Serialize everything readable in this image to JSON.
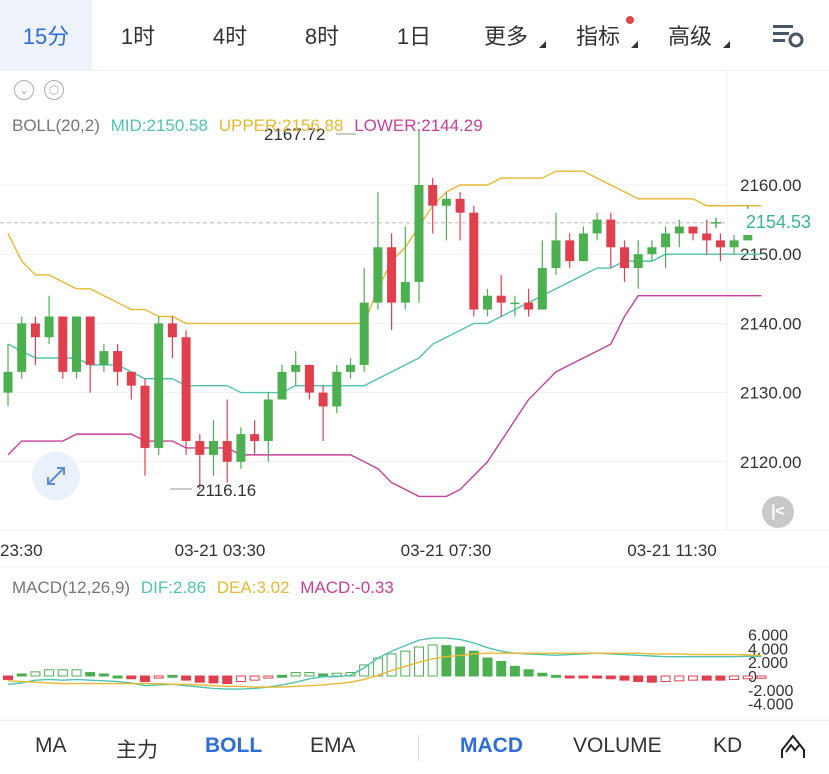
{
  "tabs": [
    {
      "label": "15分",
      "active": true
    },
    {
      "label": "1时"
    },
    {
      "label": "4时"
    },
    {
      "label": "8时"
    },
    {
      "label": "1日"
    },
    {
      "label": "更多",
      "caret": true
    },
    {
      "label": "指标",
      "caret": true,
      "dot": true
    },
    {
      "label": "高级",
      "caret": true
    }
  ],
  "boll": {
    "name": "BOLL(20,2)",
    "mid": "MID:2150.58",
    "upper": "UPPER:2156.88",
    "lower": "LOWER:2144.29"
  },
  "macd": {
    "name": "MACD(12,26,9)",
    "dif": "DIF:2.86",
    "dea": "DEA:3.02",
    "macd": "MACD:-0.33"
  },
  "current_price": "2154.53",
  "bottom": {
    "items": [
      "MA",
      "主力",
      "BOLL",
      "EMA",
      "MACD",
      "VOLUME",
      "KD"
    ],
    "active": [
      "BOLL",
      "MACD"
    ]
  },
  "colors": {
    "up": "#4caf50",
    "down": "#e0404e",
    "accent": "#2d6fd6",
    "mid": "#4fc3b0",
    "upper": "#e8b830",
    "lower": "#c8409a",
    "dif": "#4fc3b0",
    "dea": "#e8b830",
    "macd": "#c8409a"
  },
  "chart_data": [
    {
      "type": "candlestick",
      "title": "",
      "x_tick_labels": [
        "23:30",
        "03-21 03:30",
        "03-21 07:30",
        "03-21 11:30"
      ],
      "y_ticks": [
        2120.0,
        2130.0,
        2140.0,
        2150.0,
        2160.0
      ],
      "ylim": [
        2113,
        2170
      ],
      "max_label": "2167.72",
      "min_label": "2116.16",
      "current": 2154.53,
      "candles": [
        [
          2130,
          2133,
          2128,
          2137
        ],
        [
          2133,
          2140,
          2132,
          2141
        ],
        [
          2140,
          2138,
          2134,
          2141
        ],
        [
          2138,
          2141,
          2137,
          2144
        ],
        [
          2141,
          2133,
          2132,
          2141
        ],
        [
          2133,
          2141,
          2132,
          2141
        ],
        [
          2141,
          2134,
          2130,
          2141
        ],
        [
          2134,
          2136,
          2133,
          2137
        ],
        [
          2136,
          2133,
          2131,
          2137
        ],
        [
          2133,
          2131,
          2129,
          2133
        ],
        [
          2131,
          2122,
          2118,
          2132
        ],
        [
          2122,
          2140,
          2121,
          2141
        ],
        [
          2140,
          2138,
          2135,
          2141
        ],
        [
          2138,
          2123,
          2121,
          2139
        ],
        [
          2123,
          2121,
          2116,
          2124
        ],
        [
          2121,
          2123,
          2118,
          2126
        ],
        [
          2123,
          2120,
          2117,
          2129
        ],
        [
          2120,
          2124,
          2119,
          2125
        ],
        [
          2124,
          2123,
          2121,
          2126
        ],
        [
          2123,
          2129,
          2120,
          2130
        ],
        [
          2129,
          2133,
          2129,
          2134
        ],
        [
          2133,
          2134,
          2131,
          2136
        ],
        [
          2134,
          2130,
          2129,
          2134
        ],
        [
          2130,
          2128,
          2123,
          2131
        ],
        [
          2128,
          2133,
          2127,
          2134
        ],
        [
          2133,
          2134,
          2132,
          2135
        ],
        [
          2134,
          2143,
          2133,
          2148
        ],
        [
          2143,
          2151,
          2142,
          2159
        ],
        [
          2151,
          2143,
          2139,
          2153
        ],
        [
          2143,
          2146,
          2142,
          2154
        ],
        [
          2146,
          2160,
          2143,
          2168
        ],
        [
          2160,
          2157,
          2153,
          2161
        ],
        [
          2157,
          2158,
          2152,
          2159
        ],
        [
          2158,
          2156,
          2152,
          2159
        ],
        [
          2156,
          2142,
          2141,
          2157
        ],
        [
          2142,
          2144,
          2141,
          2145
        ],
        [
          2144,
          2143,
          2141,
          2147
        ],
        [
          2143,
          2143,
          2141,
          2144
        ],
        [
          2143,
          2142,
          2141,
          2145
        ],
        [
          2142,
          2148,
          2142,
          2152
        ],
        [
          2148,
          2152,
          2147,
          2156
        ],
        [
          2152,
          2149,
          2148,
          2153
        ],
        [
          2149,
          2153,
          2149,
          2154
        ],
        [
          2153,
          2155,
          2152,
          2156
        ],
        [
          2155,
          2151,
          2148,
          2156
        ],
        [
          2151,
          2148,
          2146,
          2152
        ],
        [
          2148,
          2150,
          2145,
          2152
        ],
        [
          2150,
          2151,
          2149,
          2152
        ],
        [
          2151,
          2153,
          2148,
          2154
        ],
        [
          2153,
          2154,
          2151,
          2155
        ],
        [
          2154,
          2153,
          2152,
          2154
        ],
        [
          2153,
          2152,
          2150,
          2155
        ],
        [
          2152,
          2151,
          2149,
          2153
        ],
        [
          2151,
          2152,
          2150,
          2153
        ],
        [
          2152,
          2154,
          2152,
          2157
        ],
        [
          2154,
          2154,
          2153,
          2155
        ]
      ],
      "boll_upper": [
        2153,
        2149,
        2147,
        2147,
        2146,
        2145,
        2145,
        2144,
        2143,
        2142,
        2142,
        2141,
        2141,
        2140,
        2140,
        2140,
        2140,
        2140,
        2140,
        2140,
        2140,
        2140,
        2140,
        2140,
        2140,
        2140,
        2140,
        2145,
        2149,
        2151,
        2154,
        2157,
        2159,
        2160,
        2160,
        2160,
        2161,
        2161,
        2161,
        2161,
        2162,
        2162,
        2162,
        2161,
        2160,
        2159,
        2158,
        2158,
        2158,
        2158,
        2158,
        2157,
        2157,
        2157,
        2157,
        2157
      ],
      "boll_mid": [
        2137,
        2136,
        2135,
        2135,
        2135,
        2135,
        2134,
        2134,
        2134,
        2133,
        2132,
        2132,
        2132,
        2131,
        2131,
        2131,
        2131,
        2130,
        2130,
        2130,
        2130,
        2131,
        2131,
        2131,
        2131,
        2131,
        2131,
        2132,
        2133,
        2134,
        2135,
        2137,
        2138,
        2139,
        2140,
        2140,
        2141,
        2142,
        2143,
        2144,
        2145,
        2146,
        2147,
        2148,
        2148,
        2149,
        2149,
        2149,
        2150,
        2150,
        2150,
        2150,
        2150,
        2150,
        2150,
        2150
      ],
      "boll_lower": [
        2121,
        2123,
        2123,
        2123,
        2123,
        2124,
        2124,
        2124,
        2124,
        2124,
        2123,
        2123,
        2123,
        2122,
        2122,
        2122,
        2122,
        2121,
        2121,
        2121,
        2121,
        2121,
        2121,
        2121,
        2121,
        2121,
        2120,
        2119,
        2117,
        2116,
        2115,
        2115,
        2115,
        2116,
        2118,
        2120,
        2123,
        2126,
        2129,
        2131,
        2133,
        2134,
        2135,
        2136,
        2137,
        2141,
        2144,
        2144,
        2144,
        2144,
        2144,
        2144,
        2144,
        2144,
        2144,
        2144
      ]
    },
    {
      "type": "bar",
      "title": "MACD",
      "y_ticks": [
        6.0,
        4.0,
        2.0,
        0,
        -2.0,
        -4.0
      ],
      "ylim": [
        -5,
        7
      ],
      "macd": [
        -0.5,
        0.3,
        0.6,
        0.9,
        0.9,
        0.9,
        0.5,
        0.3,
        0,
        -0.4,
        -0.8,
        -0.3,
        0.1,
        -0.6,
        -0.9,
        -1,
        -1.1,
        -0.8,
        -0.6,
        -0.3,
        0.1,
        0.5,
        0.5,
        0.3,
        0.4,
        0.5,
        1.6,
        2.6,
        3.2,
        3.6,
        4.2,
        4.5,
        4.4,
        4.2,
        3.6,
        2.6,
        2.1,
        1.4,
        0.9,
        0.4,
        0.1,
        -0.1,
        -0.2,
        -0.3,
        -0.4,
        -0.6,
        -0.8,
        -0.9,
        -0.8,
        -0.7,
        -0.6,
        -0.6,
        -0.6,
        -0.5,
        -0.4,
        -0.33
      ],
      "dif": [
        -1.2,
        -1,
        -0.6,
        -0.5,
        -0.6,
        -0.5,
        -0.6,
        -0.7,
        -0.8,
        -1,
        -1.4,
        -1.3,
        -1.2,
        -1.4,
        -1.6,
        -1.8,
        -1.9,
        -1.9,
        -1.8,
        -1.6,
        -1.3,
        -0.9,
        -0.4,
        -0.1,
        -0.1,
        0.1,
        1.2,
        2.6,
        3.6,
        4.4,
        5.2,
        5.5,
        5.5,
        5.3,
        4.8,
        4.1,
        3.6,
        3.3,
        3.2,
        3.1,
        3,
        3.1,
        3.2,
        3.3,
        3.2,
        3.1,
        3,
        2.9,
        2.8,
        2.8,
        2.8,
        2.8,
        2.8,
        2.8,
        2.85,
        2.86
      ],
      "dea": [
        -0.7,
        -0.8,
        -0.9,
        -1,
        -1.1,
        -1.1,
        -1.1,
        -1.1,
        -1.1,
        -1.1,
        -1.1,
        -1.1,
        -1.2,
        -1.2,
        -1.3,
        -1.4,
        -1.5,
        -1.5,
        -1.6,
        -1.6,
        -1.6,
        -1.5,
        -1.4,
        -1.3,
        -1.1,
        -0.9,
        -0.5,
        0.1,
        0.8,
        1.4,
        2,
        2.5,
        2.8,
        3,
        3.2,
        3.3,
        3.3,
        3.3,
        3.3,
        3.3,
        3.3,
        3.3,
        3.3,
        3.3,
        3.3,
        3.3,
        3.3,
        3.2,
        3.2,
        3.2,
        3.1,
        3.1,
        3.1,
        3.1,
        3.05,
        3.02
      ]
    }
  ]
}
